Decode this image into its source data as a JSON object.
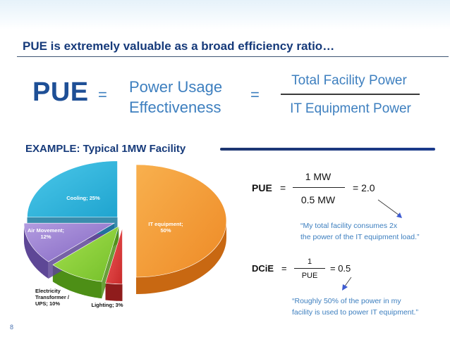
{
  "slide": {
    "heading": "PUE is extremely valuable as a broad efficiency ratio…",
    "equation": {
      "pue": "PUE",
      "equals": "=",
      "definition_line1": "Power Usage",
      "definition_line2": "Effectiveness",
      "numerator": "Total Facility Power",
      "denominator": "IT Equipment Power"
    },
    "example_title": "EXAMPLE: Typical 1MW Facility",
    "page_number": "8"
  },
  "chart_data": {
    "type": "pie",
    "title": "",
    "labels": [
      "IT equipment; 50%",
      "Lighting; 3%",
      "Electricity Transformer / UPS; 10%",
      "Air Movement; 12%",
      "Cooling; 25%"
    ],
    "slices": [
      {
        "name": "IT equipment",
        "value": 50,
        "color": "#f39a3c",
        "label_line1": "IT equipment;",
        "label_line2": "50%"
      },
      {
        "name": "Lighting",
        "value": 3,
        "color": "#e23b3b",
        "label_line1": "Lighting; 3%"
      },
      {
        "name": "Electricity Transformer / UPS",
        "value": 10,
        "color": "#8fd23a",
        "label_line1": "Electricity",
        "label_line2": "Transformer /",
        "label_line3": "UPS; 10%"
      },
      {
        "name": "Air Movement",
        "value": 12,
        "color": "#9b7fd0",
        "label_line1": "Air Movement;",
        "label_line2": "12%"
      },
      {
        "name": "Cooling",
        "value": 25,
        "color": "#33b6dc",
        "label_line1": "Cooling; 25%"
      }
    ]
  },
  "calc": {
    "pue_label": "PUE",
    "pue_eq": "=",
    "pue_num": "1 MW",
    "pue_den": "0.5 MW",
    "pue_result": "= 2.0",
    "pue_quote_line1": "“My total facility consumes 2x",
    "pue_quote_line2": "the power of the IT equipment load.”",
    "dcie_label": "DCiE",
    "dcie_eq": "=",
    "dcie_num": "1",
    "dcie_den": "PUE",
    "dcie_result": "= 0.5",
    "dcie_quote_line1": "“Roughly 50% of the power in my",
    "dcie_quote_line2": "facility is used to power IT equipment.”"
  }
}
